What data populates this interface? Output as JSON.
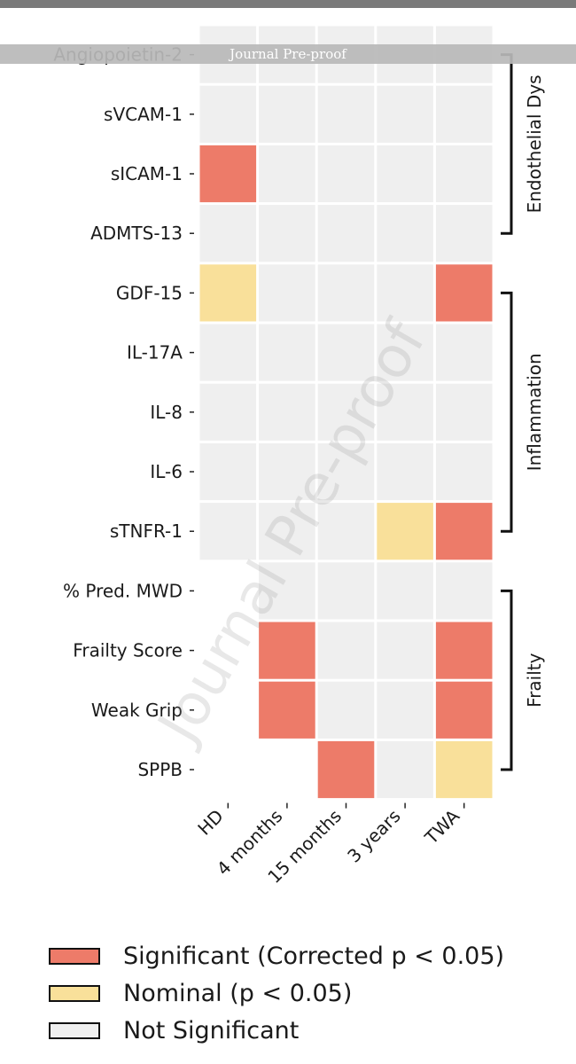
{
  "window": {
    "banner": "Journal Pre-proof",
    "watermark": "Journal Pre-proof"
  },
  "colors": {
    "significant": "#ED7B69",
    "nominal": "#F9E09A",
    "not_significant": "#EFEFEF"
  },
  "chart_data": {
    "type": "heatmap",
    "columns": [
      "HD",
      "4 months",
      "15 months",
      "3 years",
      "TWA"
    ],
    "rows": [
      {
        "label": "Angiopoietin-2",
        "cells": [
          "none",
          "none",
          "none",
          "none",
          "none"
        ]
      },
      {
        "label": "sVCAM-1",
        "cells": [
          "none",
          "none",
          "none",
          "none",
          "none"
        ]
      },
      {
        "label": "sICAM-1",
        "cells": [
          "significant",
          "none",
          "none",
          "none",
          "none"
        ]
      },
      {
        "label": "ADMTS-13",
        "cells": [
          "none",
          "none",
          "none",
          "none",
          "none"
        ]
      },
      {
        "label": "GDF-15",
        "cells": [
          "nominal",
          "none",
          "none",
          "none",
          "significant"
        ]
      },
      {
        "label": "IL-17A",
        "cells": [
          "none",
          "none",
          "none",
          "none",
          "none"
        ]
      },
      {
        "label": "IL-8",
        "cells": [
          "none",
          "none",
          "none",
          "none",
          "none"
        ]
      },
      {
        "label": "IL-6",
        "cells": [
          "none",
          "none",
          "none",
          "none",
          "none"
        ]
      },
      {
        "label": "sTNFR-1",
        "cells": [
          "none",
          "none",
          "none",
          "nominal",
          "significant"
        ]
      },
      {
        "label": "% Pred. MWD",
        "cells": [
          "empty",
          "none",
          "none",
          "none",
          "none"
        ]
      },
      {
        "label": "Frailty Score",
        "cells": [
          "empty",
          "significant",
          "none",
          "none",
          "significant"
        ]
      },
      {
        "label": "Weak Grip",
        "cells": [
          "empty",
          "significant",
          "none",
          "none",
          "significant"
        ]
      },
      {
        "label": "SPPB",
        "cells": [
          "empty",
          "empty",
          "significant",
          "none",
          "nominal"
        ]
      }
    ],
    "groups": [
      {
        "label": "Endothelial Dys",
        "start_row": 0,
        "end_row": 3
      },
      {
        "label": "Inflammation",
        "start_row": 4,
        "end_row": 8
      },
      {
        "label": "Frailty",
        "start_row": 9,
        "end_row": 12
      }
    ],
    "legend": [
      {
        "key": "significant",
        "label": "Significant (Corrected p < 0.05)"
      },
      {
        "key": "nominal",
        "label": "Nominal (p < 0.05)"
      },
      {
        "key": "none",
        "label": "Not Significant"
      }
    ]
  }
}
